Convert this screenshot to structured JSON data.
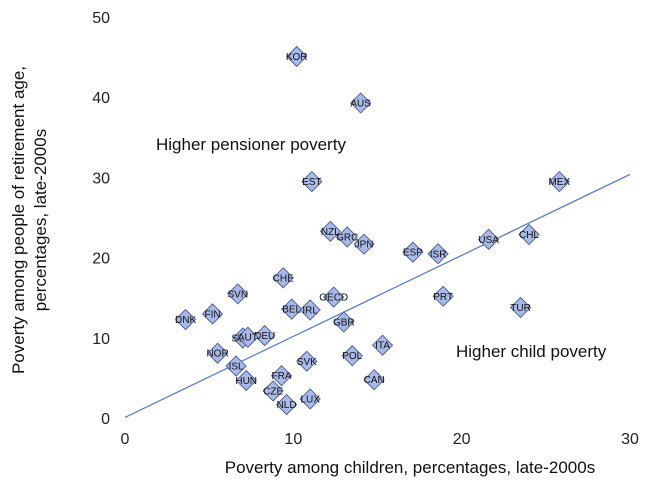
{
  "chart_data": {
    "type": "scatter",
    "xlabel": "Poverty among children, percentages, late-2000s",
    "ylabel": [
      "Poverty among people of retirement age,",
      "percentages, late-2000s"
    ],
    "xlim": [
      0,
      30
    ],
    "ylim": [
      0,
      50
    ],
    "x_ticks": [
      "0",
      "10",
      "20",
      "30"
    ],
    "y_ticks": [
      "0",
      "10",
      "20",
      "30",
      "40",
      "50"
    ],
    "grid": false,
    "annotations": [
      "Higher pensioner poverty",
      "Higher child poverty"
    ],
    "trendline": {
      "x": [
        0,
        30
      ],
      "y": [
        0.2,
        30.5
      ]
    },
    "points": [
      {
        "label": "KOR",
        "x": 10.2,
        "y": 45.2
      },
      {
        "label": "AUS",
        "x": 14.0,
        "y": 39.4
      },
      {
        "label": "EST",
        "x": 11.1,
        "y": 29.6
      },
      {
        "label": "MEX",
        "x": 25.8,
        "y": 29.6
      },
      {
        "label": "NZL",
        "x": 12.2,
        "y": 23.4
      },
      {
        "label": "GRC",
        "x": 13.2,
        "y": 22.7
      },
      {
        "label": "JPN",
        "x": 14.2,
        "y": 21.8
      },
      {
        "label": "CHL",
        "x": 24.0,
        "y": 23.0
      },
      {
        "label": "USA",
        "x": 21.6,
        "y": 22.4
      },
      {
        "label": "ESP",
        "x": 17.1,
        "y": 20.8
      },
      {
        "label": "ISR",
        "x": 18.6,
        "y": 20.6
      },
      {
        "label": "CHE",
        "x": 9.4,
        "y": 17.6
      },
      {
        "label": "SVN",
        "x": 6.7,
        "y": 15.6
      },
      {
        "label": "OECD",
        "x": 12.4,
        "y": 15.2
      },
      {
        "label": "PRT",
        "x": 18.9,
        "y": 15.3
      },
      {
        "label": "TUR",
        "x": 23.5,
        "y": 13.9
      },
      {
        "label": "BEL",
        "x": 9.9,
        "y": 13.7
      },
      {
        "label": "IRL",
        "x": 11.0,
        "y": 13.6
      },
      {
        "label": "FIN",
        "x": 5.2,
        "y": 13.1
      },
      {
        "label": "DNK",
        "x": 3.6,
        "y": 12.4
      },
      {
        "label": "GBR",
        "x": 13.0,
        "y": 12.1
      },
      {
        "label": "DEU",
        "x": 8.3,
        "y": 10.4
      },
      {
        "label": "SWE",
        "x": 7.0,
        "y": 10.1
      },
      {
        "label": "AUT",
        "x": 7.3,
        "y": 10.2
      },
      {
        "label": "ITA",
        "x": 15.3,
        "y": 9.2
      },
      {
        "label": "NOR",
        "x": 5.5,
        "y": 8.2
      },
      {
        "label": "POL",
        "x": 13.5,
        "y": 7.9
      },
      {
        "label": "SVK",
        "x": 10.8,
        "y": 7.2
      },
      {
        "label": "ISL",
        "x": 6.6,
        "y": 6.6
      },
      {
        "label": "FRA",
        "x": 9.3,
        "y": 5.4
      },
      {
        "label": "HUN",
        "x": 7.2,
        "y": 4.8
      },
      {
        "label": "CAN",
        "x": 14.8,
        "y": 4.9
      },
      {
        "label": "CZE",
        "x": 8.8,
        "y": 3.5
      },
      {
        "label": "LUX",
        "x": 11.0,
        "y": 2.5
      },
      {
        "label": "NLD",
        "x": 9.6,
        "y": 1.8
      }
    ]
  }
}
